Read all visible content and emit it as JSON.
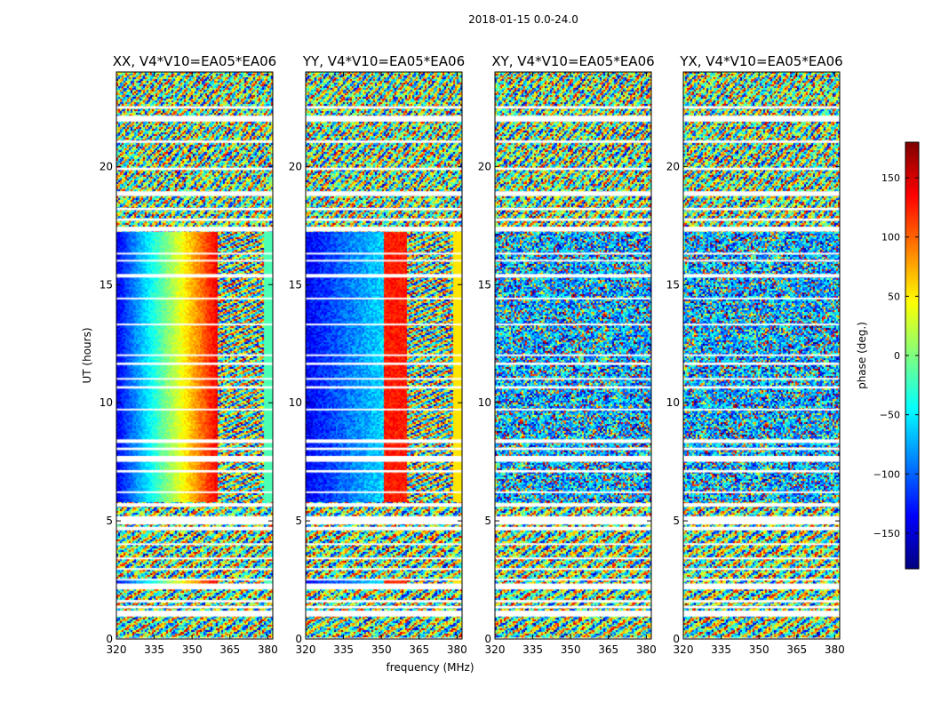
{
  "figure": {
    "suptitle": "2018-01-15 0.0-24.0",
    "xlabel": "frequency (MHz)",
    "ylabel": "UT (hours)"
  },
  "chart_data": {
    "type": "heatmap",
    "x_range": [
      320,
      382
    ],
    "y_range": [
      0,
      24
    ],
    "x_ticks": [
      320,
      335,
      350,
      365,
      380
    ],
    "y_ticks": [
      0,
      5,
      10,
      15,
      20
    ],
    "panels": [
      {
        "name": "xx",
        "title": "XX, V4*V10=EA05*EA06",
        "pattern": "parallel-red"
      },
      {
        "name": "yy",
        "title": "YY, V4*V10=EA05*EA06",
        "pattern": "parallel-blue"
      },
      {
        "name": "xy",
        "title": "XY, V4*V10=EA05*EA06",
        "pattern": "cross-noise"
      },
      {
        "name": "yx",
        "title": "YX, V4*V10=EA05*EA06",
        "pattern": "cross-noise"
      }
    ],
    "colorbar": {
      "label": "phase (deg.)",
      "range": [
        -180,
        180
      ],
      "ticks": [
        150,
        100,
        50,
        0,
        -50,
        -100,
        -150
      ],
      "tick_labels": [
        "150",
        "100",
        "50",
        "0",
        "−50",
        "−100",
        "−150"
      ],
      "colormap": [
        "#00007f",
        "#0000ff",
        "#007fff",
        "#00ffff",
        "#7fff7f",
        "#ffff00",
        "#ff7f00",
        "#ff0000",
        "#7f0000"
      ]
    },
    "flagged_bands_hours": [
      [
        0.0,
        0.05
      ],
      [
        0.95,
        1.2
      ],
      [
        1.3,
        1.4
      ],
      [
        1.55,
        1.65
      ],
      [
        2.1,
        2.35
      ],
      [
        2.5,
        2.55
      ],
      [
        2.95,
        3.0
      ],
      [
        3.4,
        3.45
      ],
      [
        4.0,
        4.05
      ],
      [
        4.6,
        4.75
      ],
      [
        4.85,
        5.2
      ],
      [
        5.6,
        5.75
      ],
      [
        6.2,
        6.25
      ],
      [
        7.05,
        7.15
      ],
      [
        7.5,
        7.75
      ],
      [
        8.0,
        8.1
      ],
      [
        8.3,
        8.45
      ],
      [
        9.7,
        9.75
      ],
      [
        10.6,
        10.7
      ],
      [
        11.0,
        11.05
      ],
      [
        11.6,
        11.7
      ],
      [
        12.0,
        12.05
      ],
      [
        13.3,
        13.35
      ],
      [
        14.4,
        14.45
      ],
      [
        15.3,
        15.45
      ],
      [
        16.0,
        16.05
      ],
      [
        16.3,
        16.35
      ],
      [
        17.25,
        17.45
      ],
      [
        17.7,
        17.8
      ],
      [
        18.15,
        18.25
      ],
      [
        18.75,
        18.95
      ],
      [
        19.85,
        19.95
      ],
      [
        21.0,
        21.1
      ],
      [
        21.9,
        22.15
      ],
      [
        22.45,
        22.55
      ]
    ]
  }
}
